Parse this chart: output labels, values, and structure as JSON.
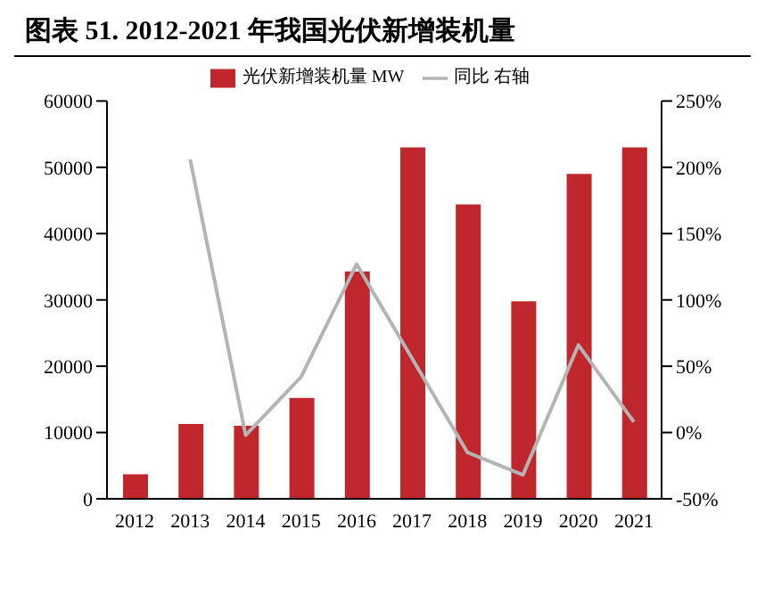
{
  "chart_data": {
    "type": "bar",
    "title": "图表 51. 2012-2021 年我国光伏新增装机量",
    "categories": [
      "2012",
      "2013",
      "2014",
      "2015",
      "2016",
      "2017",
      "2018",
      "2019",
      "2020",
      "2021"
    ],
    "series": [
      {
        "name": "光伏新增装机量 MW",
        "color": "#c0272d",
        "values": [
          3700,
          11300,
          11000,
          15200,
          34300,
          53000,
          44400,
          29800,
          49000,
          53000
        ]
      },
      {
        "name": "同比 右轴",
        "type": "line",
        "axis": "y2",
        "color": "#b4b4b4",
        "marker": "none",
        "values": [
          null,
          206,
          -2,
          42,
          127,
          56,
          -15,
          -32,
          66,
          8
        ]
      }
    ],
    "ylim": [
      0,
      60000
    ],
    "yticks": [
      0,
      10000,
      20000,
      30000,
      40000,
      50000,
      60000
    ],
    "y2lim": [
      -50,
      250
    ],
    "y2ticks": [
      {
        "value": -50,
        "label": "-50%"
      },
      {
        "value": 0,
        "label": "0%"
      },
      {
        "value": 50,
        "label": "50%"
      },
      {
        "value": 100,
        "label": "100%"
      },
      {
        "value": 150,
        "label": "150%"
      },
      {
        "value": 200,
        "label": "200%"
      },
      {
        "value": 250,
        "label": "250%"
      }
    ],
    "grid": false,
    "legend": "top"
  }
}
